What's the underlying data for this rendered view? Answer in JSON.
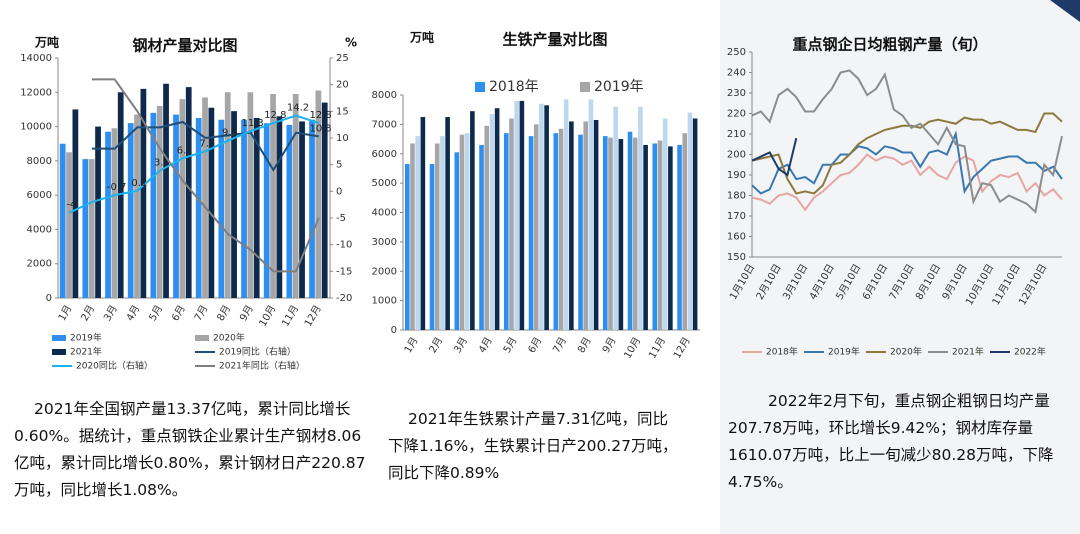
{
  "chart_data": [
    {
      "type": "bar",
      "title": "钢材产量对比图",
      "y_label": "万吨",
      "y2_label": "%",
      "categories": [
        "1月",
        "2月",
        "3月",
        "4月",
        "5月",
        "6月",
        "7月",
        "8月",
        "9月",
        "10月",
        "11月",
        "12月"
      ],
      "ylim": [
        0,
        14000
      ],
      "yticks": [
        0,
        2000,
        4000,
        6000,
        8000,
        10000,
        12000,
        14000
      ],
      "y2lim": [
        -20,
        25
      ],
      "y2ticks": [
        -20,
        -15,
        -10,
        -5,
        0,
        5,
        10,
        15,
        20,
        25
      ],
      "series": [
        {
          "name": "2019年",
          "color": "#2e8ff0",
          "values": [
            9000,
            8100,
            9700,
            10200,
            10800,
            10700,
            10500,
            10400,
            10400,
            10200,
            10100,
            10400
          ]
        },
        {
          "name": "2020年",
          "color": "#a6a6a6",
          "values": [
            8500,
            8100,
            9900,
            10700,
            11200,
            11600,
            11700,
            12000,
            12000,
            11900,
            11900,
            12100
          ]
        },
        {
          "name": "2021年",
          "color": "#0d2a4d",
          "values": [
            11000,
            10000,
            12000,
            12200,
            12500,
            12300,
            11100,
            10900,
            10500,
            10600,
            10300,
            11400
          ]
        },
        {
          "name": "2019同比（右轴）",
          "color": "#1f4e79",
          "type": "line",
          "axis": "y2",
          "values": [
            null,
            8,
            8,
            12,
            12,
            13,
            10,
            10.5,
            11,
            4,
            11,
            10.3
          ],
          "value_labels": [
            null,
            null,
            null,
            null,
            null,
            null,
            null,
            null,
            null,
            null,
            null,
            "10.3"
          ]
        },
        {
          "name": "2020同比（右轴）",
          "color": "#1ab2ef",
          "type": "line",
          "axis": "y2",
          "values": [
            -4,
            -2,
            -0.7,
            0.1,
            3.9,
            6.2,
            7.5,
            9.5,
            11.3,
            12.8,
            14.2,
            12.8
          ],
          "value_labels": [
            "-4",
            null,
            "-0.7",
            "0.1",
            "3.9",
            "6.2",
            "7.5",
            "9.5",
            "11.3",
            "12.8",
            "14.2",
            "12.8"
          ]
        },
        {
          "name": "2021年同比（右轴）",
          "color": "#7f7f7f",
          "type": "line",
          "axis": "y2",
          "values": [
            null,
            21,
            21,
            15,
            8,
            2,
            -3,
            -8,
            -11,
            -15,
            -15,
            -5
          ]
        }
      ]
    },
    {
      "type": "bar",
      "title": "生铁产量对比图",
      "y_label": "万吨",
      "categories": [
        "1月",
        "2月",
        "3月",
        "4月",
        "5月",
        "6月",
        "7月",
        "8月",
        "9月",
        "10月",
        "11月",
        "12月"
      ],
      "ylim": [
        0,
        8000
      ],
      "yticks": [
        0,
        1000,
        2000,
        3000,
        4000,
        5000,
        6000,
        7000,
        8000
      ],
      "series": [
        {
          "name": "2018年",
          "color": "#2e8ff0",
          "values": [
            5650,
            5650,
            6050,
            6300,
            6700,
            6600,
            6700,
            6650,
            6600,
            6750,
            6350,
            6300
          ]
        },
        {
          "name": "2019年",
          "color": "#a6a6a6",
          "values": [
            6350,
            6350,
            6650,
            6950,
            7200,
            7000,
            6850,
            7100,
            6550,
            6550,
            6450,
            6700
          ]
        },
        {
          "color": "#bdd7ee",
          "values": [
            6600,
            6600,
            6700,
            7350,
            7800,
            7700,
            7850,
            7850,
            7600,
            7600,
            7200,
            7400
          ]
        },
        {
          "color": "#0d2a4d",
          "values": [
            7250,
            7250,
            7450,
            7550,
            7800,
            7650,
            7100,
            7150,
            6500,
            6300,
            6250,
            7200
          ]
        }
      ]
    },
    {
      "type": "line",
      "title": "重点钢企日均粗钢产量（旬）",
      "categories": [
        "1月10日",
        null,
        null,
        "2月10日",
        null,
        null,
        "3月10日",
        null,
        null,
        "4月10日",
        null,
        null,
        "5月10日",
        null,
        null,
        "6月10日",
        null,
        null,
        "7月10日",
        null,
        null,
        "8月10日",
        null,
        null,
        "9月10日",
        null,
        null,
        "10月10日",
        null,
        null,
        "11月10日",
        null,
        null,
        "12月10日",
        null,
        null
      ],
      "ylim": [
        150,
        250
      ],
      "yticks": [
        150,
        160,
        170,
        180,
        190,
        200,
        210,
        220,
        230,
        240,
        250
      ],
      "series": [
        {
          "name": "2018年",
          "color": "#e6a5a5",
          "values": [
            179,
            178,
            176,
            180,
            181,
            179,
            173,
            179,
            182,
            186,
            190,
            191,
            195,
            200,
            197,
            199,
            198,
            195,
            197,
            190,
            194,
            190,
            188,
            196,
            199,
            197,
            182,
            187,
            190,
            189,
            191,
            182,
            186,
            180,
            183,
            178
          ]
        },
        {
          "name": "2019年",
          "color": "#3a78b0",
          "values": [
            185,
            181,
            183,
            193,
            195,
            188,
            189,
            186,
            195,
            195,
            200,
            200,
            204,
            203,
            200,
            204,
            203,
            201,
            201,
            194,
            201,
            202,
            200,
            210,
            182,
            189,
            193,
            197,
            198,
            199,
            199,
            196,
            196,
            192,
            194,
            188
          ]
        },
        {
          "name": "2020年",
          "color": "#8c7a3c",
          "values": [
            197,
            198,
            199,
            200,
            188,
            181,
            182,
            181,
            185,
            195,
            196,
            200,
            205,
            208,
            210,
            212,
            213,
            214,
            214,
            213,
            216,
            217,
            216,
            215,
            218,
            217,
            217,
            215,
            216,
            214,
            212,
            212,
            211,
            220,
            220,
            216
          ]
        },
        {
          "name": "2021年",
          "color": "#8c8c8c",
          "values": [
            219,
            221,
            216,
            229,
            232,
            228,
            221,
            221,
            227,
            232,
            240,
            241,
            237,
            229,
            232,
            239,
            222,
            219,
            213,
            215,
            210,
            205,
            213,
            205,
            204,
            177,
            186,
            185,
            177,
            180,
            178,
            176,
            172,
            195,
            190,
            209
          ]
        },
        {
          "name": "2022年",
          "color": "#1f3a68",
          "values": [
            197,
            199,
            201,
            193,
            190,
            208,
            null,
            null,
            null,
            null,
            null,
            null,
            null,
            null,
            null,
            null,
            null,
            null,
            null,
            null,
            null,
            null,
            null,
            null,
            null,
            null,
            null,
            null,
            null,
            null,
            null,
            null,
            null,
            null,
            null,
            null
          ]
        }
      ]
    }
  ],
  "texts": [
    "2021年全国钢产量13.37亿吨，累计同比增长0.60%。据统计，重点钢铁企业累计生产钢材8.06亿吨，累计同比增长0.80%，累计钢材日产220.87万吨，同比增长1.08%。",
    "2021年生铁累计产量7.31亿吨，同比下降1.16%，生铁累计日产200.27万吨，同比下降0.89%",
    "2022年2月下旬，重点钢企粗钢日均产量207.78万吨，环比增长9.42%；钢材库存量1610.07万吨，比上一旬减少80.28万吨，下降4.75%。"
  ]
}
